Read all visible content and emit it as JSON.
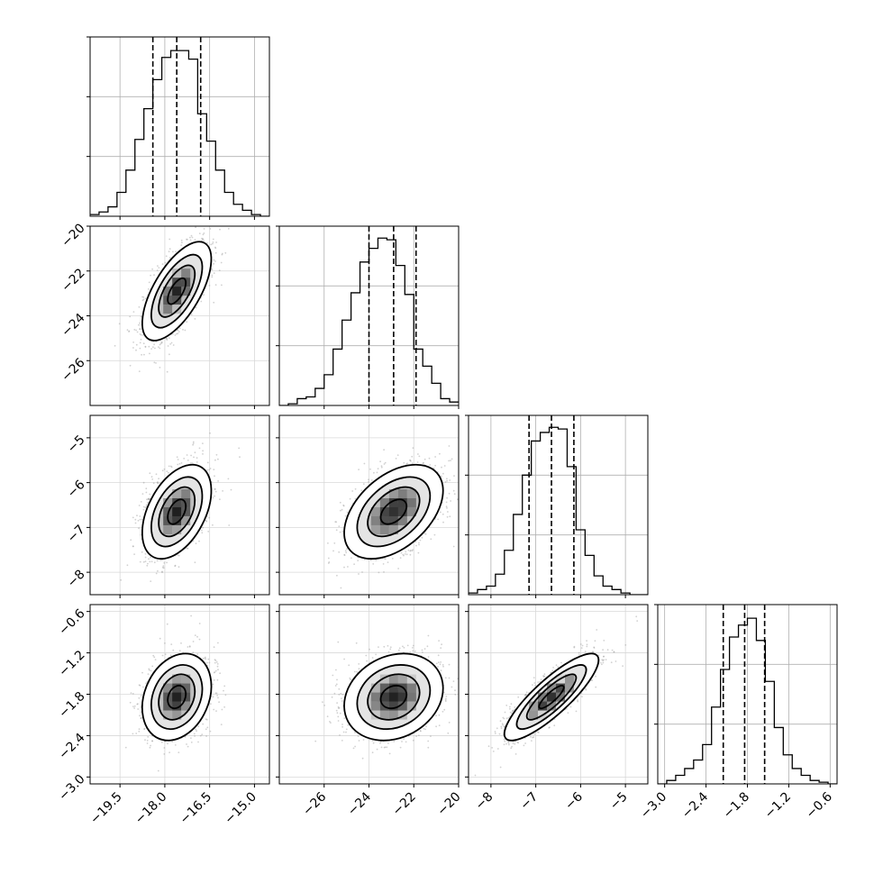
{
  "chart_data": {
    "type": "corner",
    "n_params": 4,
    "grid": true,
    "parameters": [
      {
        "range": [
          -20.5,
          -14.5
        ],
        "ticks": [
          -19.5,
          -18.0,
          -16.5,
          -15.0
        ],
        "tick_labels": [
          "−19.5",
          "−18.0",
          "−16.5",
          "−15.0"
        ],
        "quantiles": [
          -18.4,
          -17.6,
          -16.8
        ],
        "mean": -17.6,
        "sd": 0.55,
        "hist": {
          "edges": [
            -20.5,
            -20.2,
            -19.9,
            -19.6,
            -19.3,
            -19.0,
            -18.7,
            -18.4,
            -18.1,
            -17.8,
            -17.5,
            -17.2,
            -16.9,
            -16.6,
            -16.3,
            -16.0,
            -15.7,
            -15.4,
            -15.1,
            -14.8,
            -14.5
          ],
          "counts": [
            0.01,
            0.025,
            0.055,
            0.14,
            0.27,
            0.45,
            0.63,
            0.8,
            0.93,
            0.97,
            0.97,
            0.92,
            0.6,
            0.44,
            0.27,
            0.14,
            0.07,
            0.035,
            0.01,
            0.0
          ]
        }
      },
      {
        "range": [
          -28,
          -20
        ],
        "ticks": [
          -26,
          -24,
          -22,
          -20
        ],
        "tick_labels": [
          "−26",
          "−24",
          "−22",
          "−20"
        ],
        "quantiles": [
          -24.0,
          -22.9,
          -21.9
        ],
        "mean": -22.9,
        "sd": 1.05,
        "hist": {
          "edges": [
            -28.0,
            -27.6,
            -27.2,
            -26.8,
            -26.4,
            -26.0,
            -25.6,
            -25.2,
            -24.8,
            -24.4,
            -24.0,
            -23.6,
            -23.2,
            -22.8,
            -22.4,
            -22.0,
            -21.6,
            -21.2,
            -20.8,
            -20.4,
            -20.0
          ],
          "counts": [
            0.0,
            0.01,
            0.04,
            0.05,
            0.1,
            0.18,
            0.33,
            0.5,
            0.66,
            0.84,
            0.92,
            0.98,
            0.97,
            0.82,
            0.65,
            0.33,
            0.23,
            0.13,
            0.04,
            0.02
          ]
        }
      },
      {
        "range": [
          -8.5,
          -4.5
        ],
        "ticks": [
          -8,
          -7,
          -6,
          -5
        ],
        "tick_labels": [
          "−8",
          "−7",
          "−6",
          "−5"
        ],
        "quantiles": [
          -7.15,
          -6.65,
          -6.15
        ],
        "mean": -6.65,
        "sd": 0.5,
        "hist": {
          "edges": [
            -8.5,
            -8.3,
            -8.1,
            -7.9,
            -7.7,
            -7.5,
            -7.3,
            -7.1,
            -6.9,
            -6.7,
            -6.5,
            -6.3,
            -6.1,
            -5.9,
            -5.7,
            -5.5,
            -5.3,
            -5.1,
            -4.9,
            -4.7,
            -4.5
          ],
          "counts": [
            0.01,
            0.03,
            0.05,
            0.12,
            0.26,
            0.47,
            0.7,
            0.9,
            0.95,
            0.98,
            0.97,
            0.75,
            0.38,
            0.23,
            0.11,
            0.05,
            0.03,
            0.01,
            0.0,
            0.0
          ]
        }
      },
      {
        "range": [
          -3.1,
          -0.5
        ],
        "ticks": [
          -3.0,
          -2.4,
          -1.8,
          -1.2,
          -0.6
        ],
        "tick_labels": [
          "−3.0",
          "−2.4",
          "−1.8",
          "−1.2",
          "−0.6"
        ],
        "quantiles": [
          -2.15,
          -1.84,
          -1.55
        ],
        "mean": -1.84,
        "sd": 0.3,
        "hist": {
          "edges": [
            -3.1,
            -2.97,
            -2.84,
            -2.71,
            -2.58,
            -2.45,
            -2.32,
            -2.19,
            -2.06,
            -1.93,
            -1.8,
            -1.67,
            -1.54,
            -1.41,
            -1.28,
            -1.15,
            -1.02,
            -0.89,
            -0.76,
            -0.63,
            -0.5
          ],
          "counts": [
            0.0,
            0.02,
            0.05,
            0.09,
            0.14,
            0.23,
            0.45,
            0.67,
            0.86,
            0.93,
            0.97,
            0.84,
            0.6,
            0.33,
            0.17,
            0.09,
            0.05,
            0.02,
            0.01,
            0.0
          ]
        }
      }
    ],
    "correlations": [
      [
        1.0,
        0.65,
        0.45,
        0.25
      ],
      [
        0.65,
        1.0,
        0.45,
        0.2
      ],
      [
        0.45,
        0.45,
        1.0,
        0.85
      ],
      [
        0.25,
        0.2,
        0.85,
        1.0
      ]
    ]
  }
}
